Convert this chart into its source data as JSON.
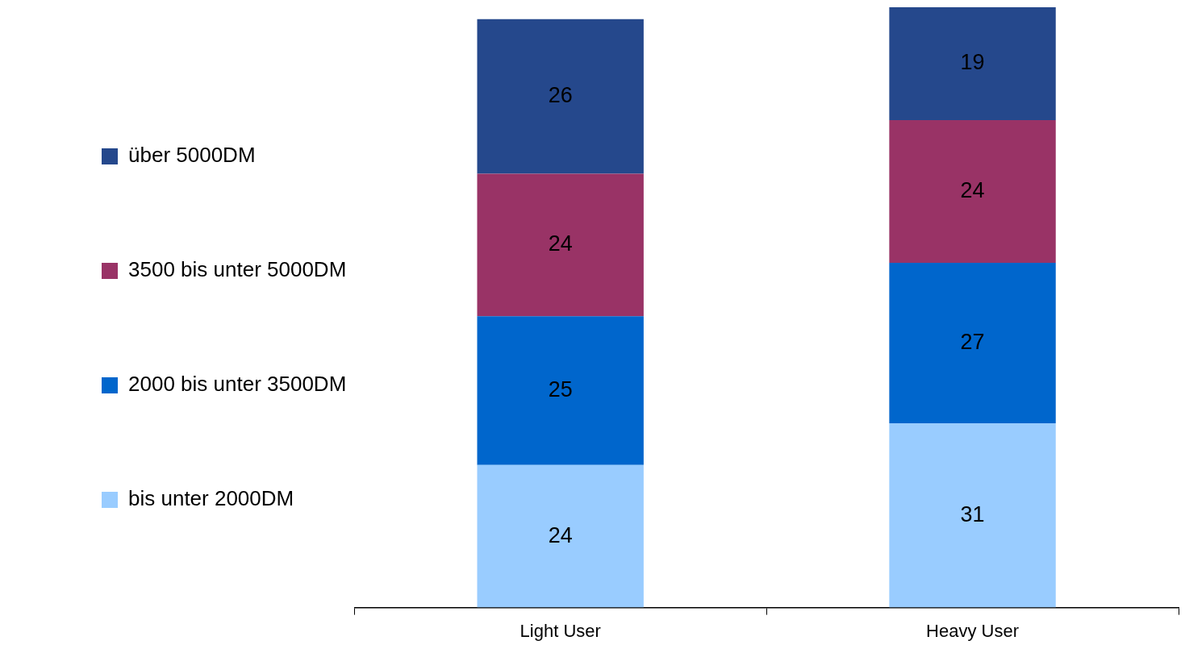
{
  "chart_data": {
    "type": "bar",
    "categories": [
      "Light User",
      "Heavy User"
    ],
    "stacked": true,
    "legend": "left",
    "data_labels": true,
    "series": [
      {
        "name": "bis unter 2000DM",
        "color": "#99ccff",
        "values": [
          24,
          31
        ]
      },
      {
        "name": "2000 bis unter 3500DM",
        "color": "#0066cc",
        "values": [
          25,
          27
        ]
      },
      {
        "name": "3500 bis unter 5000DM",
        "color": "#993366",
        "values": [
          24,
          24
        ]
      },
      {
        "name": "über 5000DM",
        "color": "#25488c",
        "values": [
          26,
          19
        ]
      }
    ]
  }
}
